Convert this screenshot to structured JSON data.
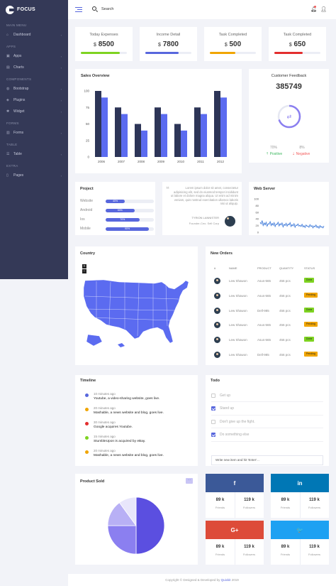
{
  "brand": {
    "name": "FOCUS"
  },
  "header": {
    "search_label": "Search"
  },
  "sidebar": {
    "sections": [
      {
        "title": "MAIN MENU",
        "items": [
          {
            "label": "Dashboard",
            "icon": "home-icon",
            "glyph": "⌂"
          }
        ]
      },
      {
        "title": "APPS",
        "items": [
          {
            "label": "Apps",
            "icon": "apps-icon",
            "glyph": "▣"
          },
          {
            "label": "Charts",
            "icon": "chart-icon",
            "glyph": "▤"
          }
        ]
      },
      {
        "title": "COMPONENTS",
        "items": [
          {
            "label": "Bootstrap",
            "icon": "world-icon",
            "glyph": "◍"
          },
          {
            "label": "Plugins",
            "icon": "shield-icon",
            "glyph": "◈"
          },
          {
            "label": "Widget",
            "icon": "gear-icon",
            "glyph": "✱"
          }
        ]
      },
      {
        "title": "FORMS",
        "items": [
          {
            "label": "Forms",
            "icon": "form-icon",
            "glyph": "▥"
          }
        ]
      },
      {
        "title": "TABLE",
        "items": [
          {
            "label": "Table",
            "icon": "table-icon",
            "glyph": "☰"
          }
        ]
      },
      {
        "title": "EXTRA",
        "items": [
          {
            "label": "Pages",
            "icon": "file-icon",
            "glyph": "▯"
          }
        ]
      }
    ]
  },
  "stats": [
    {
      "label": "Today Expenses",
      "currency": "$",
      "value": "8500",
      "color": "#7ed321",
      "progress": 0.85
    },
    {
      "label": "Income Detail",
      "currency": "$",
      "value": "7800",
      "color": "#5867dd",
      "progress": 0.72
    },
    {
      "label": "Task Completed",
      "currency": "$",
      "value": "500",
      "color": "#f0a500",
      "progress": 0.55
    },
    {
      "label": "Task Completed",
      "currency": "$",
      "value": "650",
      "color": "#e32e2e",
      "progress": 0.62
    }
  ],
  "sales": {
    "title": "Sales Overview",
    "chart_data": {
      "type": "bar",
      "categories": [
        "2006",
        "2007",
        "2008",
        "2009",
        "2010",
        "2011",
        "2012"
      ],
      "series": [
        {
          "values": [
            100,
            75,
            50,
            75,
            50,
            75,
            100
          ],
          "color": "#2d3557"
        },
        {
          "values": [
            90,
            65,
            40,
            65,
            40,
            65,
            90
          ],
          "color": "#5b6bf0"
        }
      ],
      "yticks": [
        "0",
        "25",
        "50",
        "75",
        "100"
      ],
      "ylim": [
        0,
        100
      ]
    }
  },
  "feedback": {
    "title": "Customer Feedback",
    "value": "385749",
    "positive_pct": "70%",
    "negative_pct": "8%",
    "positive_label": "Positive",
    "negative_label": "Negative"
  },
  "project": {
    "title": "Project",
    "items": [
      {
        "label": "Website",
        "pct": "40%",
        "value": 0.4
      },
      {
        "label": "Android",
        "pct": "60%",
        "value": 0.6
      },
      {
        "label": "Ios",
        "pct": "70%",
        "value": 0.7
      },
      {
        "label": "Mobile",
        "pct": "90%",
        "value": 0.9
      }
    ]
  },
  "quote": {
    "text": "Lorem ipsum dolor sit amet, consectetur adipisicing elit, sed do eiusmod tempor incididunt ut labore et dolore magna aliqua. Ut enim ad minim veniam, quis nostrud exercitation ullamco laboris nisi ut aliquip.",
    "author": "TYRION LANNISTER",
    "role": "Founder-Ceo. Sell Corp"
  },
  "web_server": {
    "title": "Web Server",
    "chart_data": {
      "type": "line",
      "yticks": [
        "0",
        "20",
        "40",
        "60",
        "80",
        "100"
      ],
      "ylim": [
        0,
        100
      ],
      "color": "#2f6fd6",
      "values": [
        30,
        25,
        35,
        20,
        28,
        22,
        30,
        18,
        26,
        24,
        32,
        20,
        27,
        21,
        29,
        17,
        25,
        23,
        30,
        19,
        26,
        22,
        28,
        16,
        24,
        20,
        27,
        18,
        25,
        22,
        29,
        17,
        23,
        19,
        26,
        15,
        22,
        20,
        25,
        18,
        21,
        17,
        24,
        16,
        20,
        14,
        22,
        18,
        19,
        15,
        23,
        17,
        20,
        13,
        19,
        16,
        22,
        14,
        18,
        12,
        20,
        15,
        17,
        13,
        19
      ]
    }
  },
  "country": {
    "title": "Country",
    "zoom_in": "+",
    "zoom_out": "−"
  },
  "orders": {
    "title": "New Orders",
    "columns": [
      "#",
      "NAME",
      "PRODUCT",
      "QUANTITY",
      "STATUS"
    ],
    "rows": [
      {
        "name": "Lew Shawon",
        "product": "Asus-565",
        "qty": "456 pcs",
        "status": "Done",
        "color": "#7ed321"
      },
      {
        "name": "Lew Shawon",
        "product": "Asus-565",
        "qty": "456 pcs",
        "status": "Pending",
        "color": "#f0a500"
      },
      {
        "name": "Lew Shawon",
        "product": "Dell-985",
        "qty": "456 pcs",
        "status": "Done",
        "color": "#7ed321"
      },
      {
        "name": "Lew Shawon",
        "product": "Asus-565",
        "qty": "456 pcs",
        "status": "Pending",
        "color": "#f0a500"
      },
      {
        "name": "Lew Shawon",
        "product": "Asus-565",
        "qty": "456 pcs",
        "status": "Done",
        "color": "#7ed321"
      },
      {
        "name": "Lew Shawon",
        "product": "Dell-985",
        "qty": "456 pcs",
        "status": "Pending",
        "color": "#f0a500"
      }
    ]
  },
  "timeline": {
    "title": "Timeline",
    "items": [
      {
        "time": "10 minutes ago",
        "text": "Youtube, a video-sharing website, goes live.",
        "color": "#5867dd"
      },
      {
        "time": "20 minutes ago",
        "text": "Mashable, a news website and blog, goes live.",
        "color": "#f0a500"
      },
      {
        "time": "30 minutes ago",
        "text": "Google acquires Youtube.",
        "color": "#e32e2e"
      },
      {
        "time": "15 minutes ago",
        "text": "StumbleUpon is acquired by eBay.",
        "color": "#7ed321"
      },
      {
        "time": "20 minutes ago",
        "text": "Mashable, a news website and blog, goes live.",
        "color": "#f0a500"
      }
    ]
  },
  "todo": {
    "title": "Todo",
    "items": [
      {
        "text": "Get up",
        "checked": false
      },
      {
        "text": "Stand up",
        "checked": true
      },
      {
        "text": "Don't give up the fight.",
        "checked": false
      },
      {
        "text": "Do something else",
        "checked": true
      }
    ],
    "input_placeholder": "Write new item and hit 'Enter'..."
  },
  "product_sold": {
    "title": "Product Sold",
    "menu": "···",
    "chart_data": {
      "type": "pie",
      "values": [
        50,
        25,
        15,
        10
      ],
      "colors": [
        "#5b4fe0",
        "#8b7ff0",
        "#b8b0f5",
        "#e8e6fb"
      ]
    }
  },
  "social": [
    {
      "network": "facebook",
      "glyph": "f",
      "color": "#3b5998",
      "left_num": "89 k",
      "left_label": "Friends",
      "right_num": "119 k",
      "right_label": "Followers"
    },
    {
      "network": "linkedin",
      "glyph": "in",
      "color": "#0077b5",
      "left_num": "89 k",
      "left_label": "Friends",
      "right_num": "119 k",
      "right_label": "Followers"
    },
    {
      "network": "google-plus",
      "glyph": "G+",
      "color": "#dd4b39",
      "left_num": "89 k",
      "left_label": "Friends",
      "right_num": "119 k",
      "right_label": "Followers"
    },
    {
      "network": "twitter",
      "glyph": "🐦",
      "color": "#1da1f2",
      "left_num": "89 k",
      "left_label": "Friends",
      "right_num": "119 k",
      "right_label": "Followers"
    }
  ],
  "footer": {
    "text": "Copyright © Designed & Developed by",
    "brand": "Quixkit",
    "year": "2019"
  }
}
